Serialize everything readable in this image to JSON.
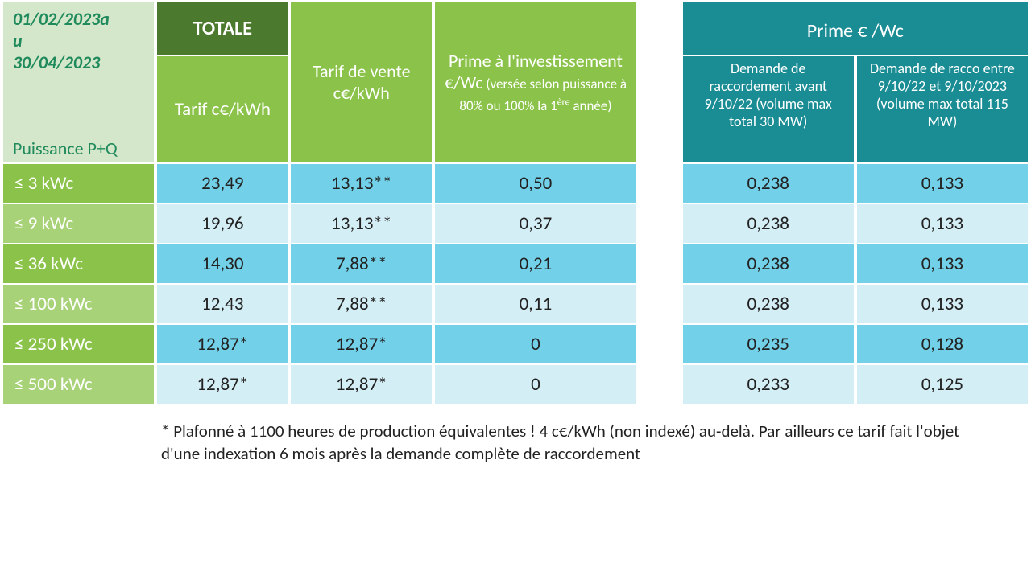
{
  "colors": {
    "period_bg": "#d5e7cb",
    "period_text": "#1f8a5b",
    "totale_bg": "#4b7a2f",
    "green2_bg": "#8bc34a",
    "green2_alt_bg": "#a8d278",
    "teal_bg": "#1a8c94",
    "row_blue_a": "#72d0e8",
    "row_blue_b": "#d4eef6",
    "white": "#ffffff",
    "text": "#222222"
  },
  "header": {
    "period_line1": "01/02/2023a",
    "period_line2": "u",
    "period_line3": "30/04/2023",
    "puissance": "Puissance P+Q",
    "totale": "TOTALE",
    "tarif": "Tarif c€/kWh",
    "tarif_vente": "Tarif de vente c€/kWh",
    "prime_inv_main": "Prime à l'investissement €/Wc",
    "prime_inv_sub": " (versée selon puissance à 80% ou 100% la 1",
    "prime_inv_sup": "ère",
    "prime_inv_end": " année)",
    "prime_wc": "Prime € /Wc",
    "demande1": "Demande de raccordement avant 9/10/22 (volume max total 30 MW)",
    "demande2": "Demande de racco entre 9/10/22 et 9/10/2023 (volume max total 115 MW)"
  },
  "columns": {
    "widths_pct": [
      15,
      13,
      14,
      20,
      4,
      17,
      17
    ]
  },
  "rows": [
    {
      "label": "≤ 3 kWc",
      "tarif": "23,49",
      "vente": "13,13**",
      "inv": "0,50",
      "p1": "0,238",
      "p2": "0,133"
    },
    {
      "label": "≤  9 kWc",
      "tarif": "19,96",
      "vente": "13,13**",
      "inv": "0,37",
      "p1": "0,238",
      "p2": "0,133"
    },
    {
      "label": "≤  36 kWc",
      "tarif": "14,30",
      "vente": "7,88**",
      "inv": "0,21",
      "p1": "0,238",
      "p2": "0,133"
    },
    {
      "label": "≤  100 kWc",
      "tarif": "12,43",
      "vente": "7,88**",
      "inv": "0,11",
      "p1": "0,238",
      "p2": "0,133"
    },
    {
      "label": "≤  250 kWc",
      "tarif": "12,87*",
      "vente": "12,87*",
      "inv": "0",
      "p1": "0,235",
      "p2": "0,128"
    },
    {
      "label": "≤  500 kWc",
      "tarif": "12,87*",
      "vente": "12,87*",
      "inv": "0",
      "p1": "0,233",
      "p2": "0,125"
    }
  ],
  "footnote": "* Plafonné à 1100 heures de production équivalentes ! 4 c€/kWh (non indexé) au-delà. Par ailleurs ce tarif fait l'objet d'une indexation 6 mois après la demande complète de raccordement"
}
